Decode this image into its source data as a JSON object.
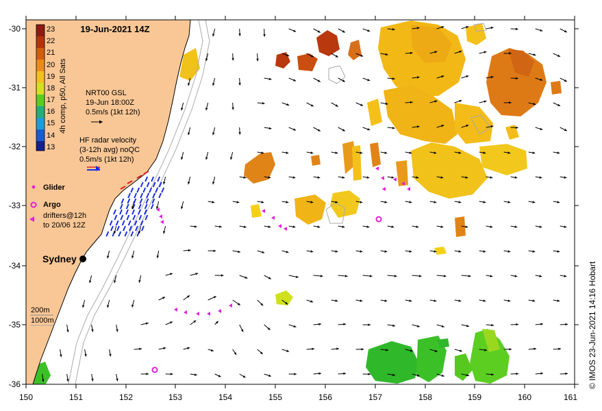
{
  "title": "19-Jun-2021 14Z",
  "credit": "© IMOS 23-Jun-2021 14:16 Hobart",
  "lon_ticks": [
    "150",
    "151",
    "152",
    "153",
    "154",
    "155",
    "156",
    "157",
    "158",
    "159",
    "160",
    "161"
  ],
  "lat_ticks": [
    "-30",
    "-31",
    "-32",
    "-33",
    "-34",
    "-35",
    "-36"
  ],
  "colorbar": {
    "label": "4h comp, p50, All Sats",
    "ticks": [
      "23",
      "22",
      "21",
      "20",
      "19",
      "18",
      "17",
      "16",
      "15",
      "14",
      "13"
    ]
  },
  "legend": {
    "nrt_line1": "NRT00 GSL",
    "nrt_line2": "19-Jun 18:00Z",
    "nrt_line3": "0.5m/s (1kt 12h)",
    "hf_line1": "HF radar velocity",
    "hf_line2": "(3-12h avg) noQC",
    "hf_line3": "0.5m/s (1kt 12h)",
    "glider": "Glider",
    "argo": "Argo",
    "drift_line1": "drifters@12h",
    "drift_line2": "to 20/06 12Z",
    "depth_200": "200m",
    "depth_1000": "1000m"
  },
  "city": "Sydney",
  "colors": {
    "land": "#f9c796",
    "sst_warm": "#c94e10",
    "sst_mid": "#f2b816",
    "sst_cool": "#27b827",
    "hf": "#1a2ee0",
    "drifter": "#e020d8"
  }
}
